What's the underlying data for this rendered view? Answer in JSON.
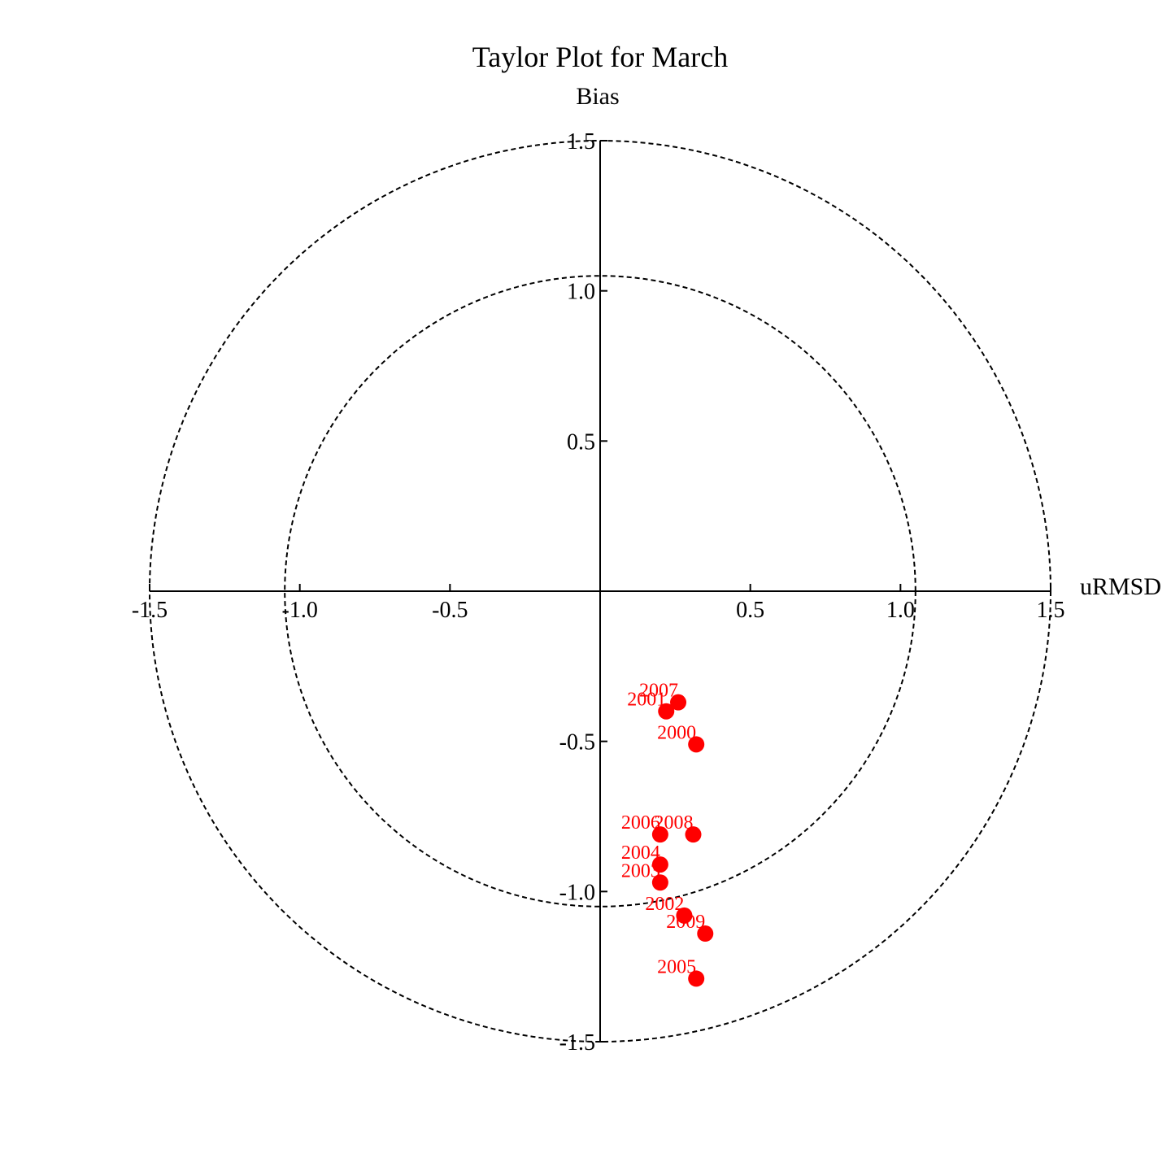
{
  "chart_data": {
    "type": "scatter",
    "title": "Taylor Plot for March",
    "xlabel": "uRMSD",
    "ylabel": "Bias",
    "xlim": [
      -1.5,
      1.5
    ],
    "ylim": [
      -1.5,
      1.5
    ],
    "x_ticks": [
      {
        "value": -1.5,
        "label": "-1.5"
      },
      {
        "value": -1.0,
        "label": "-1.0"
      },
      {
        "value": -0.5,
        "label": "-0.5"
      },
      {
        "value": 0.5,
        "label": "0.5"
      },
      {
        "value": 1.0,
        "label": "1.0"
      },
      {
        "value": 1.5,
        "label": "1.5"
      }
    ],
    "y_ticks": [
      {
        "value": 1.5,
        "label": "1.5"
      },
      {
        "value": 1.0,
        "label": "1.0"
      },
      {
        "value": 0.5,
        "label": "0.5"
      },
      {
        "value": -0.5,
        "label": "-0.5"
      },
      {
        "value": -1.0,
        "label": "-1.0"
      },
      {
        "value": -1.5,
        "label": "-1.5"
      }
    ],
    "reference_circles": [
      1.05,
      1.5
    ],
    "grid": false,
    "marker_color": "#ff0000",
    "points": [
      {
        "label": "2000",
        "x": 0.32,
        "y": -0.51
      },
      {
        "label": "2001",
        "x": 0.22,
        "y": -0.4
      },
      {
        "label": "2002",
        "x": 0.28,
        "y": -1.08
      },
      {
        "label": "2003",
        "x": 0.2,
        "y": -0.97
      },
      {
        "label": "2004",
        "x": 0.2,
        "y": -0.91
      },
      {
        "label": "2005",
        "x": 0.32,
        "y": -1.29
      },
      {
        "label": "2006",
        "x": 0.2,
        "y": -0.81
      },
      {
        "label": "2007",
        "x": 0.26,
        "y": -0.37
      },
      {
        "label": "2008",
        "x": 0.31,
        "y": -0.81
      },
      {
        "label": "2009",
        "x": 0.35,
        "y": -1.14
      }
    ]
  }
}
